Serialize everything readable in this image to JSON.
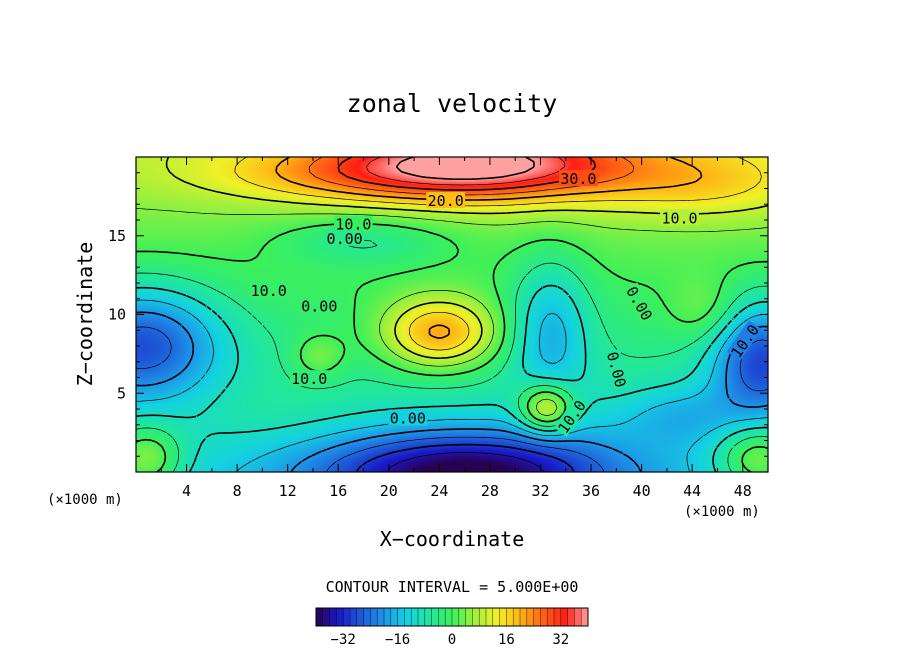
{
  "chart_data": {
    "type": "heatmap",
    "title": "zonal velocity",
    "xlabel": "X−coordinate",
    "ylabel": "Z−coordinate",
    "x_unit": "(×1000 m)",
    "z_unit": "(×1000 m)",
    "xlim": [
      0,
      50
    ],
    "ylim": [
      0,
      20
    ],
    "x_ticks": [
      4,
      8,
      12,
      16,
      20,
      24,
      28,
      32,
      36,
      40,
      44,
      48
    ],
    "y_ticks": [
      5,
      10,
      15
    ],
    "grid": false,
    "contour_interval_text": "CONTOUR INTERVAL = 5.000E+00",
    "contour_interval": 5.0,
    "colorbar": {
      "range": [
        -40,
        40
      ],
      "ticks": [
        "−32",
        "−16",
        "0",
        "16",
        "32"
      ],
      "tick_values": [
        -32,
        -16,
        0,
        16,
        32
      ],
      "colors": [
        "#2a0050",
        "#1a1ac8",
        "#1e5ad8",
        "#1e96e8",
        "#14d2e0",
        "#20e6a0",
        "#3cf05a",
        "#a0f03c",
        "#f0f028",
        "#ffb414",
        "#ff6414",
        "#ff1e14",
        "#ffa0a0"
      ]
    },
    "field_centers": [
      {
        "x": 27,
        "z": 19.5,
        "u": 36,
        "sx": 8.5,
        "sz": 1.6
      },
      {
        "x": 15,
        "z": 18.8,
        "u": 8,
        "sx": 8,
        "sz": 1.2
      },
      {
        "x": 45,
        "z": 18.3,
        "u": 10,
        "sx": 6,
        "sz": 1.6
      },
      {
        "x": 24,
        "z": 8.8,
        "u": 24,
        "sx": 3.2,
        "sz": 1.6
      },
      {
        "x": 14.5,
        "z": 7.3,
        "u": 8,
        "sx": 1.5,
        "sz": 1.0
      },
      {
        "x": 32.5,
        "z": 4.0,
        "u": 22,
        "sx": 1.5,
        "sz": 1.1
      },
      {
        "x": 45,
        "z": 10.2,
        "u": 6,
        "sx": 2.0,
        "sz": 1.5
      },
      {
        "x": 0.5,
        "z": 8.2,
        "u": -24,
        "sx": 4.5,
        "sz": 2.6
      },
      {
        "x": 49.5,
        "z": 7.2,
        "u": -24,
        "sx": 2.8,
        "sz": 2.6
      },
      {
        "x": 26,
        "z": 0.0,
        "u": -30,
        "sx": 8.5,
        "sz": 1.9
      },
      {
        "x": 32.8,
        "z": 9.2,
        "u": -14,
        "sx": 2.2,
        "sz": 3.2
      },
      {
        "x": 18,
        "z": 14.7,
        "u": -8,
        "sx": 5.0,
        "sz": 1.2
      },
      {
        "x": 0.8,
        "z": 0.8,
        "u": 16,
        "sx": 2.0,
        "sz": 1.5
      },
      {
        "x": 49.2,
        "z": 0.8,
        "u": 16,
        "sx": 2.2,
        "sz": 1.5
      },
      {
        "x": 10,
        "z": 3.8,
        "u": 2,
        "sx": 6,
        "sz": 1.6
      },
      {
        "x": 43,
        "z": 3.6,
        "u": -8,
        "sx": 3.5,
        "sz": 1.4
      }
    ],
    "contour_labels": [
      {
        "text": "30.0",
        "x": 35,
        "z": 18.6
      },
      {
        "text": "20.0",
        "x": 24.5,
        "z": 17.2
      },
      {
        "text": "10.0",
        "x": 17.2,
        "z": 15.7
      },
      {
        "text": "0.00",
        "x": 16.5,
        "z": 14.8
      },
      {
        "text": "10.0",
        "x": 43,
        "z": 16.1
      },
      {
        "text": "10.0",
        "x": 10.5,
        "z": 11.5
      },
      {
        "text": "0.00",
        "x": 14.5,
        "z": 10.5
      },
      {
        "text": "10.0",
        "x": 13.7,
        "z": 5.9
      },
      {
        "text": "0.00",
        "x": 21.5,
        "z": 3.4
      },
      {
        "text": "0.00",
        "x": 39.8,
        "z": 10.7,
        "rotate": 60
      },
      {
        "text": "0.00",
        "x": 38.0,
        "z": 6.5,
        "rotate": 75
      },
      {
        "text": "10.0",
        "x": 34.5,
        "z": 3.5,
        "rotate": -55
      },
      {
        "text": "10.0",
        "x": 48.2,
        "z": 8.3,
        "rotate": -55
      }
    ]
  }
}
